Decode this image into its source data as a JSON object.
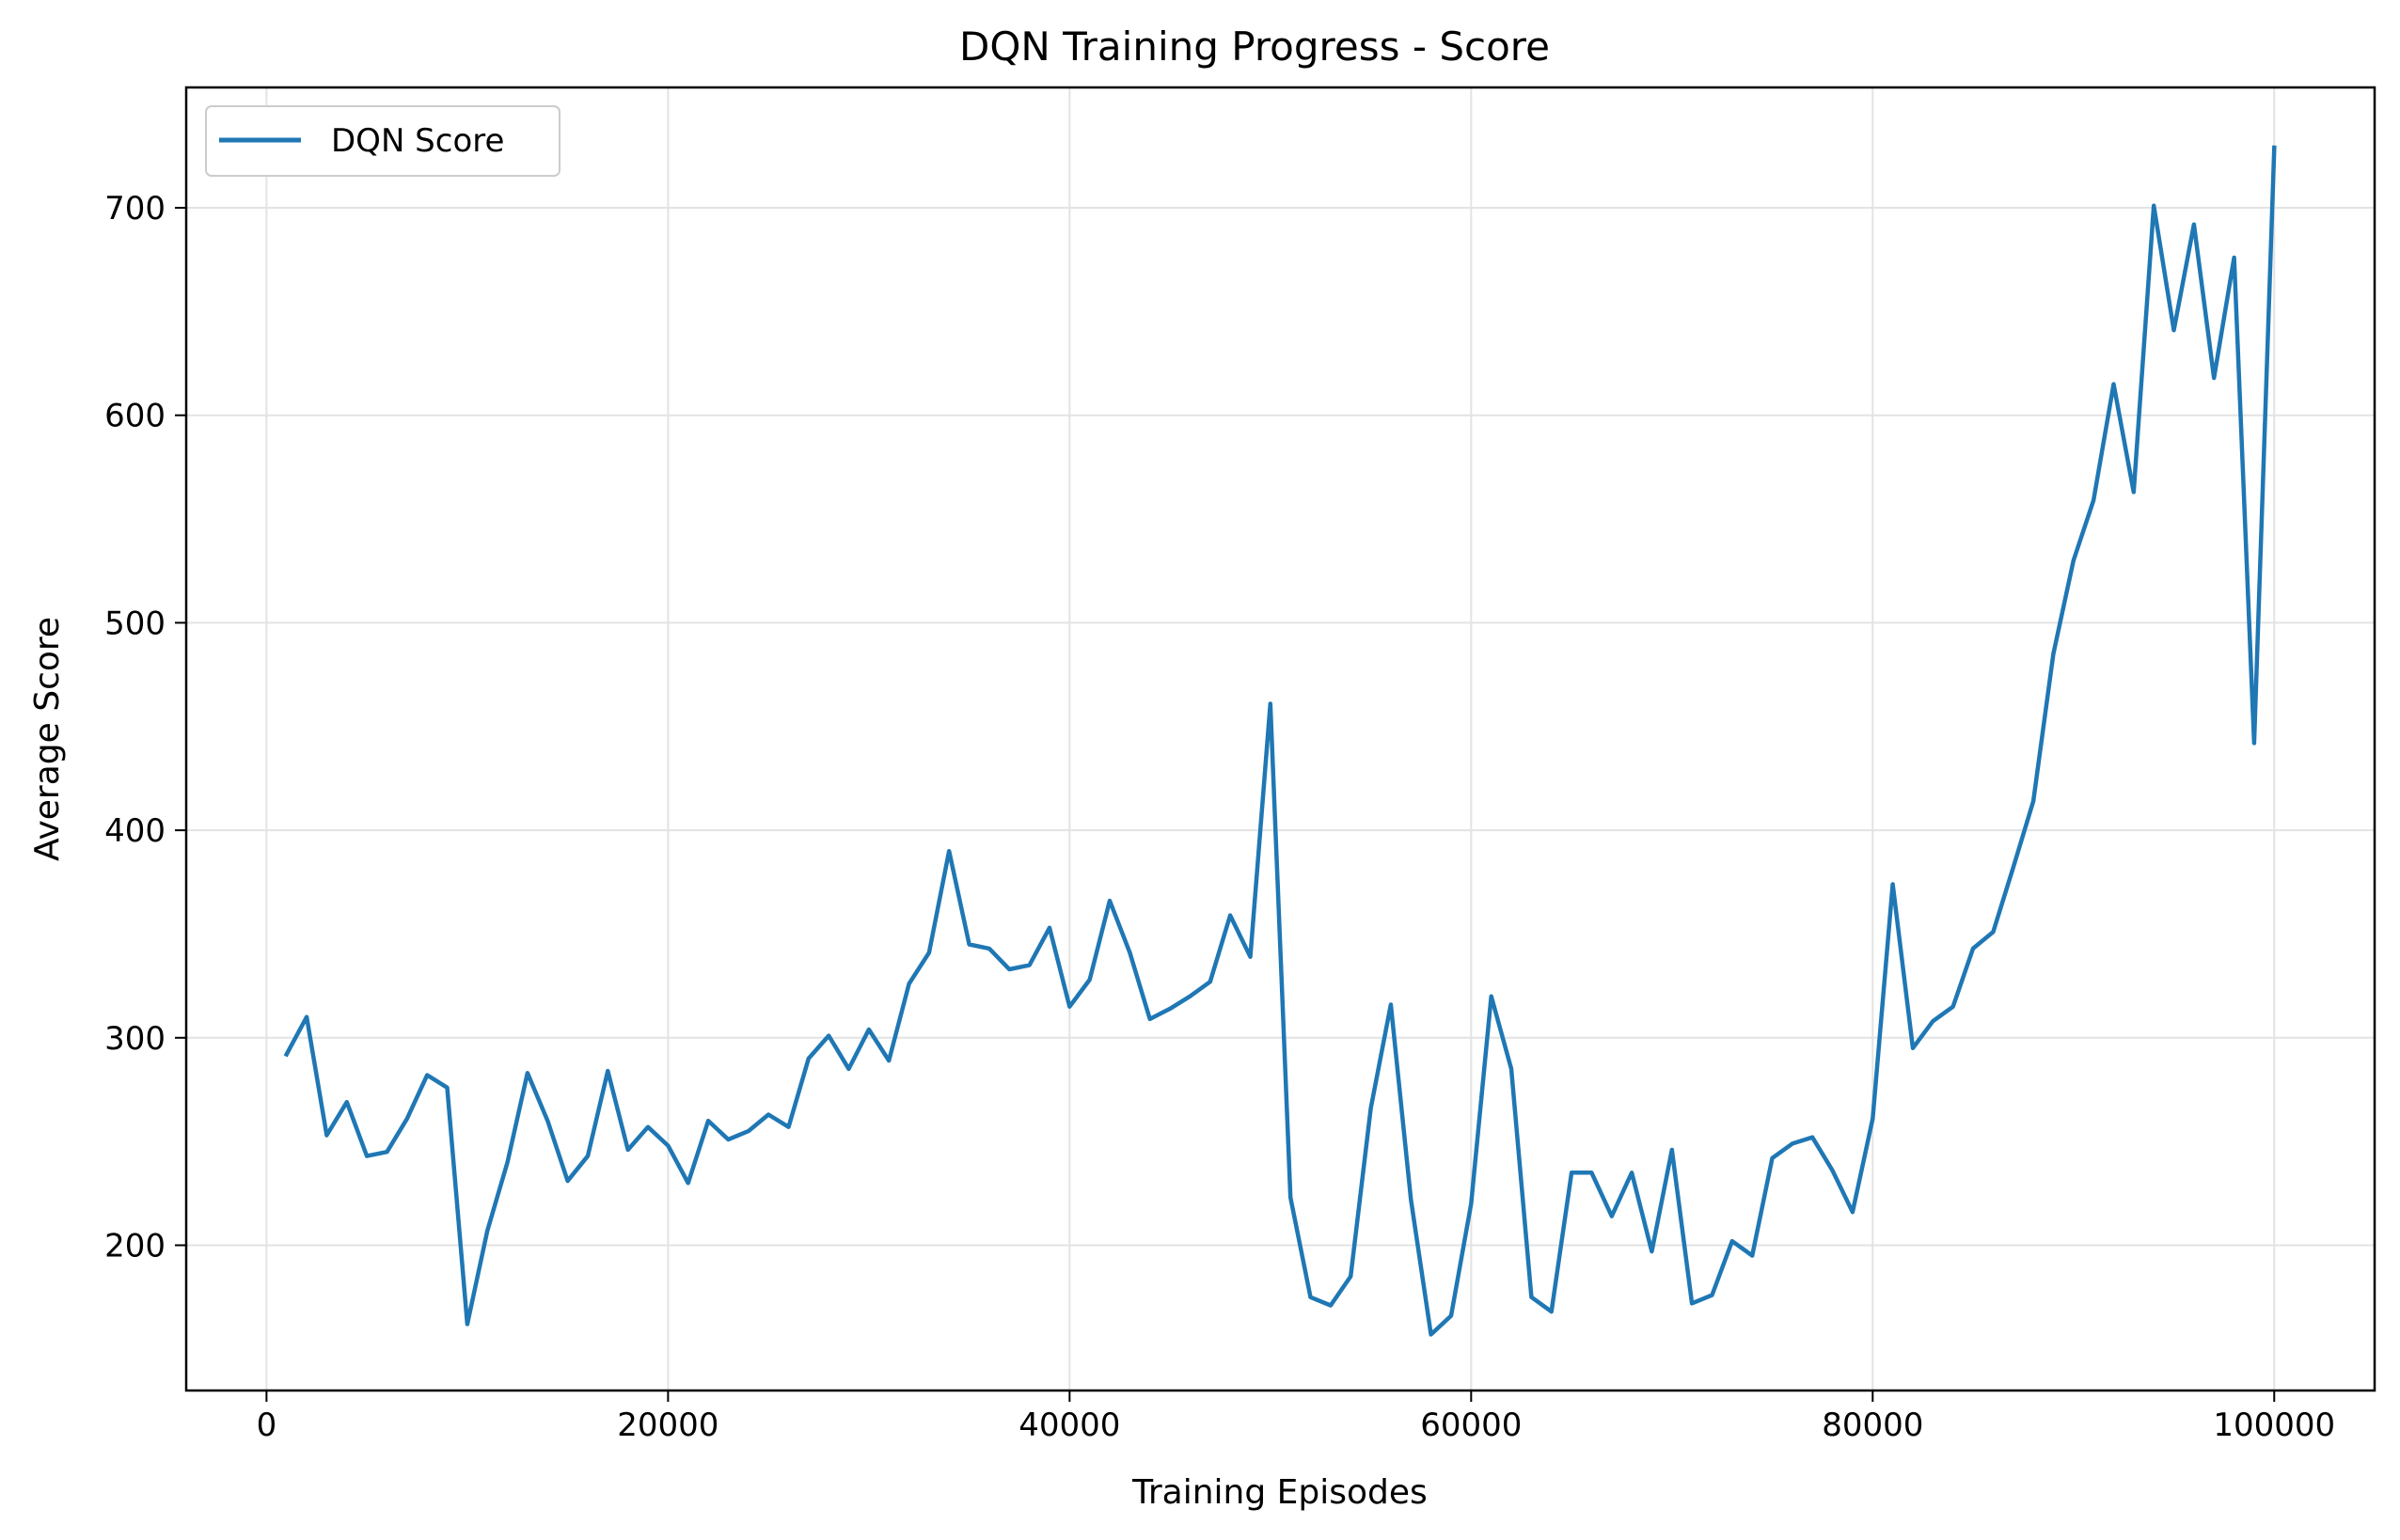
{
  "chart_data": {
    "type": "line",
    "title": "DQN Training Progress - Score",
    "xlabel": "Training Episodes",
    "ylabel": "Average Score",
    "xlim": [
      -4000,
      105000
    ],
    "ylim": [
      130,
      758
    ],
    "xticks": [
      0,
      20000,
      40000,
      60000,
      80000,
      100000
    ],
    "yticks": [
      200,
      300,
      400,
      500,
      600,
      700
    ],
    "grid": true,
    "legend": "top-left",
    "series": [
      {
        "name": "DQN Score",
        "color": "#1f77b4",
        "x": [
          1000,
          2000,
          3000,
          4000,
          5000,
          6000,
          7000,
          8000,
          9000,
          10000,
          11000,
          12000,
          13000,
          14000,
          15000,
          16000,
          17000,
          18000,
          19000,
          20000,
          21000,
          22000,
          23000,
          24000,
          25000,
          26000,
          27000,
          28000,
          29000,
          30000,
          31000,
          32000,
          33000,
          34000,
          35000,
          36000,
          37000,
          38000,
          39000,
          40000,
          41000,
          42000,
          43000,
          44000,
          45000,
          46000,
          47000,
          48000,
          49000,
          50000,
          51000,
          52000,
          53000,
          54000,
          55000,
          56000,
          57000,
          58000,
          59000,
          60000,
          61000,
          62000,
          63000,
          64000,
          65000,
          66000,
          67000,
          68000,
          69000,
          70000,
          71000,
          72000,
          73000,
          74000,
          75000,
          76000,
          77000,
          78000,
          79000,
          80000,
          81000,
          82000,
          83000,
          84000,
          85000,
          86000,
          87000,
          88000,
          89000,
          90000,
          91000,
          92000,
          93000,
          94000,
          95000,
          96000,
          97000,
          98000,
          99000,
          100000
        ],
        "y": [
          292,
          310,
          253,
          269,
          243,
          245,
          261,
          282,
          276,
          162,
          207,
          240,
          283,
          260,
          231,
          243,
          284,
          246,
          257,
          248,
          230,
          260,
          251,
          255,
          263,
          257,
          290,
          301,
          285,
          304,
          289,
          326,
          341,
          390,
          345,
          343,
          333,
          335,
          353,
          315,
          328,
          366,
          341,
          309,
          314,
          320,
          327,
          359,
          339,
          461,
          223,
          175,
          171,
          185,
          266,
          316,
          222,
          157,
          166,
          220,
          320,
          285,
          175,
          168,
          235,
          235,
          214,
          235,
          197,
          246,
          172,
          176,
          202,
          195,
          242,
          249,
          252,
          236,
          216,
          261,
          374,
          295,
          308,
          315,
          343,
          351,
          382,
          414,
          485,
          530,
          559,
          615,
          563,
          701,
          641,
          692,
          618,
          676,
          442,
          729
        ]
      }
    ]
  }
}
